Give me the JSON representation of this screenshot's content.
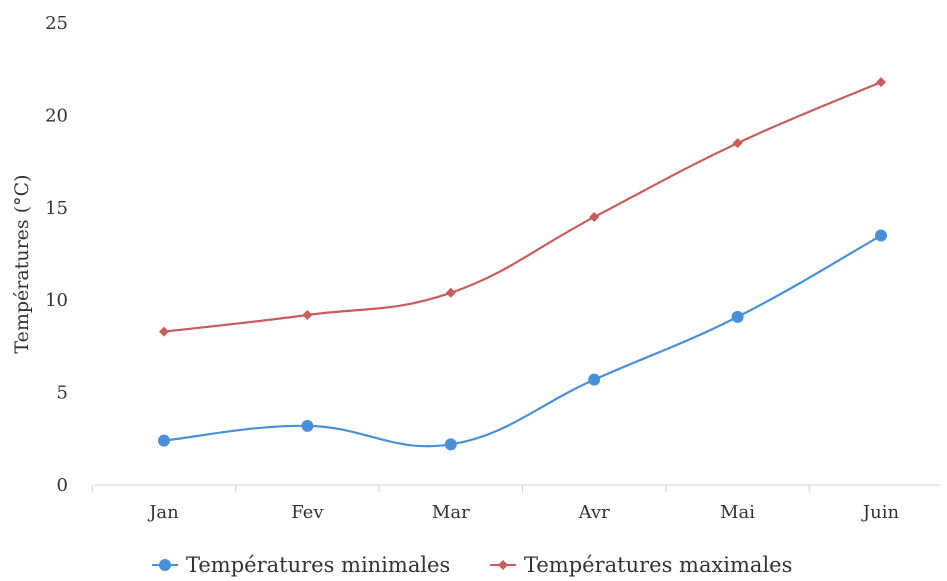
{
  "chart_data": {
    "type": "line",
    "categories": [
      "Jan",
      "Fev",
      "Mar",
      "Avr",
      "Mai",
      "Juin"
    ],
    "series": [
      {
        "name": "Températures minimales",
        "color": "#4a90d9",
        "marker": "circle",
        "values": [
          2.4,
          3.2,
          2.2,
          5.7,
          9.1,
          13.5
        ]
      },
      {
        "name": "Températures maximales",
        "color": "#c95c5c",
        "marker": "diamond",
        "values": [
          8.3,
          9.2,
          10.4,
          14.5,
          18.5,
          21.8
        ]
      }
    ],
    "ylabel": "Températures (°C)",
    "xlabel": "",
    "ylim": [
      0,
      25
    ],
    "yticks": [
      "0",
      "5",
      "10",
      "15",
      "20",
      "25"
    ],
    "grid": false,
    "legend_position": "bottom",
    "smooth": true
  }
}
